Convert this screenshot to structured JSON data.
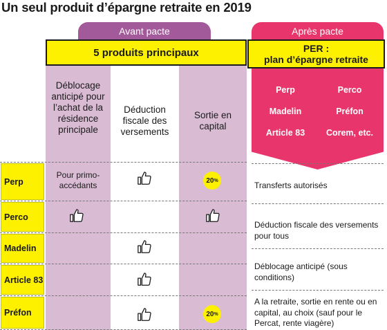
{
  "title": "Un seul produit d’épargne retraite en 2019",
  "left": {
    "tab_label": "Avant pacte",
    "box_label": "5 produits principaux",
    "columns": [
      "Déblocage anticipé pour l’achat de la résidence principale",
      "Déduction fiscale des versements",
      "Sortie en capital"
    ]
  },
  "right": {
    "tab_label": "Après pacte",
    "box_line1": "PER :",
    "box_line2": "plan d’épargne retraite",
    "products": [
      "Perp",
      "Perco",
      "Madelin",
      "Préfon",
      "Article 83",
      "Corem, etc."
    ],
    "notes": [
      "Transferts autorisés",
      "Déduction fiscale des versements pour tous",
      "Déblocage anticipé (sous conditions)",
      "A la retraite, sortie en rente ou en capital, au choix (sauf pour le Percat, rente viagère)"
    ]
  },
  "rows": [
    {
      "label": "Perp",
      "c1_text": "Pour primo-accédants",
      "c1": "text",
      "c2": "thumb",
      "c3": "pct"
    },
    {
      "label": "Perco",
      "c1": "thumb",
      "c2": "none",
      "c3": "thumb"
    },
    {
      "label": "Madelin",
      "c1": "none",
      "c2": "thumb",
      "c3": "none"
    },
    {
      "label": "Article 83",
      "c1": "none",
      "c2": "thumb",
      "c3": "none"
    },
    {
      "label": "Préfon",
      "c1": "none",
      "c2": "thumb",
      "c3": "pct"
    }
  ],
  "pct_value": "20",
  "pct_unit": "%",
  "icons": {
    "thumb": "thumbs-up-icon"
  },
  "colors": {
    "purple": "#a35a9a",
    "lilac": "#d9bcd4",
    "pink": "#e8356b",
    "yellow": "#fdf100"
  }
}
